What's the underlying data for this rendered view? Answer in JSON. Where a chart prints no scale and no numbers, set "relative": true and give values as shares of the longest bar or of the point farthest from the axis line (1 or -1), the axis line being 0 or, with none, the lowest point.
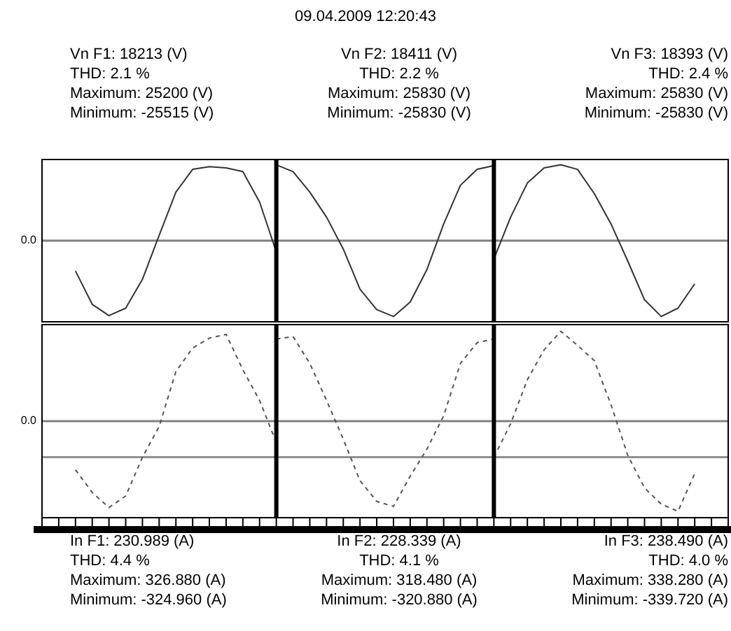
{
  "chart_data": [
    {
      "type": "line",
      "title": "09.04.2009 12:20:43",
      "relative": true,
      "annotations": [
        "Vn F1: 18213 (V)",
        "THD: 2.1 %",
        "Maximum: 25200 (V)",
        "Minimum: -25515 (V)",
        "Vn F2: 18411 (V)",
        "THD: 2.2 %",
        "Maximum: 25830 (V)",
        "Minimum: -25830 (V)",
        "Vn F3: 18393 (V)",
        "THD: 2.4 %",
        "Maximum: 25830 (V)",
        "Minimum: -25830 (V)",
        "0.0"
      ],
      "categories": [
        null,
        null,
        null,
        null,
        null,
        null,
        null,
        null,
        null,
        null,
        null,
        null,
        null,
        null,
        null,
        null,
        null,
        null,
        null,
        null,
        null,
        null,
        null,
        null,
        null,
        null,
        null,
        null,
        null,
        null,
        null,
        null,
        null,
        null,
        null,
        null,
        null,
        null,
        null,
        null,
        null,
        null
      ],
      "series": [
        {
          "color": "#333333",
          "values": [
            null,
            null,
            -0.4,
            -0.84,
            -0.988,
            -0.89,
            -0.51,
            0.07,
            0.64,
            0.94,
            0.976,
            0.96,
            0.91,
            0.51,
            -0.15,
            null,
            null,
            null,
            null,
            null,
            null,
            null,
            null,
            null,
            null,
            null,
            null,
            null,
            null,
            null,
            null,
            null,
            null,
            null,
            null,
            null,
            null,
            null,
            null,
            null,
            null,
            null
          ]
        },
        {
          "color": "#333333",
          "values": [
            null,
            null,
            null,
            null,
            null,
            null,
            null,
            null,
            null,
            null,
            null,
            null,
            null,
            null,
            1,
            0.91,
            0.64,
            0.31,
            -0.11,
            -0.64,
            -0.91,
            -1,
            -0.81,
            -0.38,
            0.22,
            0.73,
            0.94,
            0.99,
            null,
            null,
            null,
            null,
            null,
            null,
            null,
            null,
            null,
            null,
            null,
            null,
            null,
            null
          ]
        },
        {
          "color": "#333333",
          "values": [
            null,
            null,
            null,
            null,
            null,
            null,
            null,
            null,
            null,
            null,
            null,
            null,
            null,
            null,
            null,
            null,
            null,
            null,
            null,
            null,
            null,
            null,
            null,
            null,
            null,
            null,
            null,
            -0.24,
            0.31,
            0.76,
            0.96,
            1,
            0.94,
            0.62,
            0.22,
            -0.27,
            -0.78,
            -1,
            -0.89,
            -0.57,
            null,
            null
          ]
        }
      ],
      "tick_labels": false,
      "line_style": "solid"
    },
    {
      "type": "line",
      "relative": true,
      "annotations": [
        "In F1: 230.989 (A)",
        "THD: 4.4 %",
        "Maximum: 326.880 (A)",
        "Minimum: -324.960 (A)",
        "In F2: 228.339 (A)",
        "THD: 4.1 %",
        "Maximum: 318.480 (A)",
        "Minimum: -320.880 (A)",
        "In F3: 238.490 (A)",
        "THD: 4.0 %",
        "Maximum: 338.280 (A)",
        "Minimum: -339.720 (A)",
        "0.0"
      ],
      "categories": [
        null,
        null,
        null,
        null,
        null,
        null,
        null,
        null,
        null,
        null,
        null,
        null,
        null,
        null,
        null,
        null,
        null,
        null,
        null,
        null,
        null,
        null,
        null,
        null,
        null,
        null,
        null,
        null,
        null,
        null,
        null,
        null,
        null,
        null,
        null,
        null,
        null,
        null,
        null,
        null,
        null,
        null
      ],
      "series": [
        {
          "color": "#555555",
          "values": [
            null,
            null,
            -0.54,
            -0.79,
            -0.957,
            -0.83,
            -0.4,
            -0.06,
            0.55,
            0.81,
            0.92,
            0.962,
            0.57,
            0.23,
            -0.24,
            null,
            null,
            null,
            null,
            null,
            null,
            null,
            null,
            null,
            null,
            null,
            null,
            null,
            null,
            null,
            null,
            null,
            null,
            null,
            null,
            null,
            null,
            null,
            null,
            null,
            null,
            null
          ]
        },
        {
          "color": "#555555",
          "values": [
            null,
            null,
            null,
            null,
            null,
            null,
            null,
            null,
            null,
            null,
            null,
            null,
            null,
            null,
            0.91,
            0.937,
            0.64,
            0.23,
            -0.2,
            -0.66,
            -0.89,
            -0.945,
            -0.61,
            -0.31,
            0.06,
            0.64,
            0.87,
            0.91,
            null,
            null,
            null,
            null,
            null,
            null,
            null,
            null,
            null,
            null,
            null,
            null,
            null,
            null
          ]
        },
        {
          "color": "#555555",
          "values": [
            null,
            null,
            null,
            null,
            null,
            null,
            null,
            null,
            null,
            null,
            null,
            null,
            null,
            null,
            null,
            null,
            null,
            null,
            null,
            null,
            null,
            null,
            null,
            null,
            null,
            null,
            null,
            -0.4,
            -0.03,
            0.46,
            0.79,
            0.996,
            0.84,
            0.67,
            0.18,
            -0.38,
            -0.74,
            -0.92,
            -1,
            -0.58,
            null,
            null
          ]
        }
      ],
      "tick_labels": false,
      "line_style": "dashed",
      "ref_lines": [
        {
          "axis": "y",
          "value": -0.4,
          "color": "#909090"
        }
      ]
    }
  ]
}
